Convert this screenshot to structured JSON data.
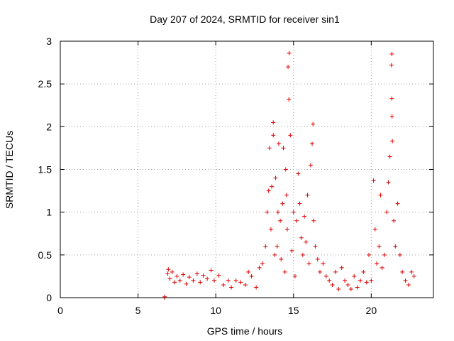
{
  "chart_data": {
    "type": "scatter",
    "title": "Day 207 of 2024, SRMTID for receiver sin1",
    "xlabel": "GPS time / hours",
    "ylabel": "SRMTID / TECUs",
    "xlim": [
      0,
      24
    ],
    "ylim": [
      0,
      3
    ],
    "xticks": [
      0,
      5,
      10,
      15,
      20
    ],
    "yticks": [
      0,
      0.5,
      1,
      1.5,
      2,
      2.5,
      3
    ],
    "xtick_labels": [
      "0",
      "5",
      "10",
      "15",
      "20"
    ],
    "ytick_labels": [
      "0",
      "0.5",
      "1",
      "1.5",
      "2",
      "2.5",
      "3"
    ],
    "grid": true,
    "marker": "+",
    "color": "#e00000",
    "series": [
      {
        "name": "SRMTID",
        "points": [
          [
            6.72,
            0.0
          ],
          [
            6.72,
            0.01
          ],
          [
            6.9,
            0.28
          ],
          [
            6.95,
            0.33
          ],
          [
            7.05,
            0.22
          ],
          [
            7.2,
            0.3
          ],
          [
            7.35,
            0.18
          ],
          [
            7.5,
            0.25
          ],
          [
            7.7,
            0.2
          ],
          [
            7.9,
            0.27
          ],
          [
            8.1,
            0.16
          ],
          [
            8.3,
            0.24
          ],
          [
            8.55,
            0.2
          ],
          [
            8.8,
            0.28
          ],
          [
            9.0,
            0.18
          ],
          [
            9.2,
            0.26
          ],
          [
            9.45,
            0.22
          ],
          [
            9.7,
            0.32
          ],
          [
            9.9,
            0.2
          ],
          [
            10.2,
            0.26
          ],
          [
            10.5,
            0.15
          ],
          [
            10.8,
            0.2
          ],
          [
            11.0,
            0.12
          ],
          [
            11.3,
            0.2
          ],
          [
            11.6,
            0.18
          ],
          [
            11.9,
            0.15
          ],
          [
            12.1,
            0.3
          ],
          [
            12.3,
            0.25
          ],
          [
            12.6,
            0.12
          ],
          [
            12.8,
            0.35
          ],
          [
            13.0,
            0.4
          ],
          [
            13.2,
            0.6
          ],
          [
            13.3,
            1.0
          ],
          [
            13.4,
            1.25
          ],
          [
            13.45,
            1.75
          ],
          [
            13.55,
            0.8
          ],
          [
            13.6,
            1.3
          ],
          [
            13.7,
            1.9
          ],
          [
            13.7,
            2.05
          ],
          [
            13.8,
            0.5
          ],
          [
            13.85,
            1.4
          ],
          [
            13.95,
            0.6
          ],
          [
            14.0,
            1.0
          ],
          [
            14.05,
            1.8
          ],
          [
            14.15,
            0.9
          ],
          [
            14.2,
            0.45
          ],
          [
            14.3,
            1.1
          ],
          [
            14.35,
            1.75
          ],
          [
            14.45,
            0.3
          ],
          [
            14.5,
            1.5
          ],
          [
            14.55,
            1.2
          ],
          [
            14.6,
            0.8
          ],
          [
            14.65,
            2.7
          ],
          [
            14.72,
            2.86
          ],
          [
            14.7,
            2.32
          ],
          [
            14.8,
            1.9
          ],
          [
            14.9,
            0.55
          ],
          [
            15.0,
            1.0
          ],
          [
            15.1,
            0.25
          ],
          [
            15.2,
            0.9
          ],
          [
            15.3,
            1.45
          ],
          [
            15.4,
            1.1
          ],
          [
            15.5,
            0.7
          ],
          [
            15.6,
            0.5
          ],
          [
            15.7,
            0.95
          ],
          [
            15.8,
            0.65
          ],
          [
            15.9,
            1.2
          ],
          [
            16.0,
            0.4
          ],
          [
            16.1,
            1.55
          ],
          [
            16.2,
            1.8
          ],
          [
            16.25,
            2.03
          ],
          [
            16.3,
            0.9
          ],
          [
            16.4,
            0.6
          ],
          [
            16.55,
            0.45
          ],
          [
            16.7,
            0.3
          ],
          [
            16.9,
            0.4
          ],
          [
            17.1,
            0.25
          ],
          [
            17.3,
            0.2
          ],
          [
            17.5,
            0.15
          ],
          [
            17.7,
            0.3
          ],
          [
            17.9,
            0.1
          ],
          [
            18.1,
            0.35
          ],
          [
            18.3,
            0.2
          ],
          [
            18.5,
            0.15
          ],
          [
            18.7,
            0.1
          ],
          [
            18.9,
            0.25
          ],
          [
            19.1,
            0.12
          ],
          [
            19.3,
            0.2
          ],
          [
            19.5,
            0.3
          ],
          [
            19.7,
            0.18
          ],
          [
            19.85,
            0.5
          ],
          [
            20.0,
            0.2
          ],
          [
            20.15,
            1.37
          ],
          [
            20.25,
            0.8
          ],
          [
            20.35,
            0.4
          ],
          [
            20.5,
            0.6
          ],
          [
            20.6,
            1.2
          ],
          [
            20.7,
            0.35
          ],
          [
            20.85,
            0.5
          ],
          [
            21.0,
            1.0
          ],
          [
            21.1,
            1.35
          ],
          [
            21.2,
            1.65
          ],
          [
            21.3,
            2.72
          ],
          [
            21.33,
            2.85
          ],
          [
            21.32,
            2.33
          ],
          [
            21.34,
            2.12
          ],
          [
            21.36,
            1.83
          ],
          [
            21.45,
            0.9
          ],
          [
            21.55,
            0.6
          ],
          [
            21.7,
            1.1
          ],
          [
            21.85,
            0.5
          ],
          [
            22.0,
            0.3
          ],
          [
            22.2,
            0.2
          ],
          [
            22.4,
            0.15
          ],
          [
            22.6,
            0.3
          ],
          [
            22.75,
            0.25
          ]
        ]
      }
    ]
  }
}
